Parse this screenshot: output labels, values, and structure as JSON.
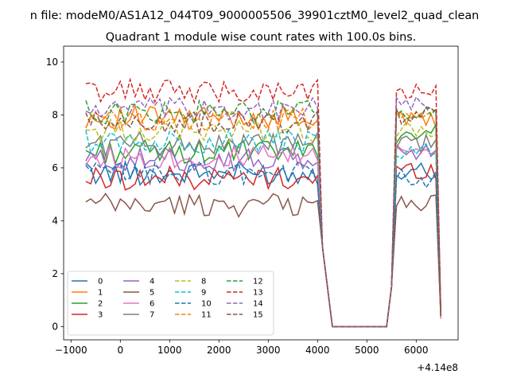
{
  "chart_data": {
    "type": "line",
    "suptitle": "n file: modeM0/AS1A12_044T09_9000005506_39901cztM0_level2_quad_clean",
    "title": "Quadrant 1 module wise count rates with 100.0s bins.",
    "xlabel": "",
    "ylabel": "",
    "x_offset_label": "+4.14e8",
    "xlim": [
      -1150,
      6850
    ],
    "ylim": [
      -0.5,
      10.6
    ],
    "x_ticks": [
      -1000,
      0,
      1000,
      2000,
      3000,
      4000,
      5000,
      6000
    ],
    "x_tick_labels": [
      "−1000",
      "0",
      "1000",
      "2000",
      "3000",
      "4000",
      "5000",
      "6000"
    ],
    "y_ticks": [
      0,
      2,
      4,
      6,
      8,
      10
    ],
    "y_tick_labels": [
      "0",
      "2",
      "4",
      "6",
      "8",
      "10"
    ],
    "grid": false,
    "legend_position": "lower-left",
    "segments": [
      {
        "x_start": -700,
        "x_end": 4000,
        "step": 100
      },
      {
        "x_start": 5600,
        "x_end": 6400,
        "step": 100
      }
    ],
    "transition_points": [
      [
        4100,
        3.0
      ],
      [
        4300,
        0
      ],
      [
        5400,
        0
      ],
      [
        5500,
        1.5
      ]
    ],
    "final_point_x": 6500,
    "series": [
      {
        "name": "0",
        "color": "#1f77b4",
        "dash": "solid",
        "segment_means": [
          5.8,
          5.9
        ],
        "final": 0.4
      },
      {
        "name": "1",
        "color": "#ff7f0e",
        "dash": "solid",
        "segment_means": [
          7.9,
          7.8
        ],
        "final": 0.4
      },
      {
        "name": "2",
        "color": "#2ca02c",
        "dash": "solid",
        "segment_means": [
          6.6,
          7.3
        ],
        "final": 0.4
      },
      {
        "name": "3",
        "color": "#d62728",
        "dash": "solid",
        "segment_means": [
          5.6,
          5.9
        ],
        "final": 0.3
      },
      {
        "name": "4",
        "color": "#9467bd",
        "dash": "solid",
        "segment_means": [
          6.3,
          6.6
        ],
        "final": 0.3
      },
      {
        "name": "5",
        "color": "#8c564b",
        "dash": "solid",
        "segment_means": [
          4.6,
          4.7
        ],
        "final": 0.3
      },
      {
        "name": "6",
        "color": "#e377c2",
        "dash": "solid",
        "segment_means": [
          6.4,
          6.8
        ],
        "final": 0.3
      },
      {
        "name": "7",
        "color": "#7f7f7f",
        "dash": "solid",
        "segment_means": [
          6.9,
          6.9
        ],
        "final": 0.4
      },
      {
        "name": "8",
        "color": "#bcbd22",
        "dash": "dashed",
        "segment_means": [
          7.4,
          7.4
        ],
        "final": 0.4
      },
      {
        "name": "9",
        "color": "#17becf",
        "dash": "dashed",
        "segment_means": [
          7.0,
          6.6
        ],
        "final": 0.4
      },
      {
        "name": "10",
        "color": "#1f77b4",
        "dash": "dashed",
        "segment_means": [
          5.8,
          5.6
        ],
        "final": 0.4
      },
      {
        "name": "11",
        "color": "#ff7f0e",
        "dash": "dashed",
        "segment_means": [
          7.8,
          7.9
        ],
        "final": 0.4
      },
      {
        "name": "12",
        "color": "#2ca02c",
        "dash": "dashed",
        "segment_means": [
          8.1,
          8.2
        ],
        "final": 0.4
      },
      {
        "name": "13",
        "color": "#d62728",
        "dash": "dashed",
        "segment_means": [
          8.9,
          8.9
        ],
        "final": 0.5
      },
      {
        "name": "14",
        "color": "#9467bd",
        "dash": "dashed",
        "segment_means": [
          8.2,
          8.4
        ],
        "final": 0.4
      },
      {
        "name": "15",
        "color": "#8c564b",
        "dash": "dashed",
        "segment_means": [
          7.7,
          8.0
        ],
        "final": 0.4
      }
    ]
  }
}
